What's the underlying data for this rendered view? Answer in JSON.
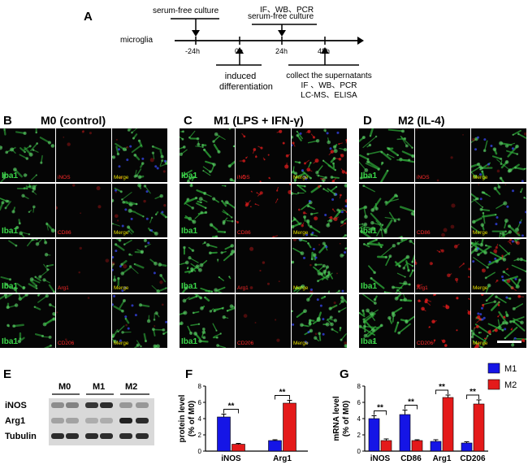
{
  "panel_a": {
    "label": "A",
    "axis_label": "microglia",
    "ticks": [
      "-24h",
      "0h",
      "24h",
      "48h"
    ],
    "top_left": "serum-free culture",
    "top_right_1": "IF、WB、PCR",
    "top_right_2": "serum-free culture",
    "bottom_left_1": "induced",
    "bottom_left_2": "differentiation",
    "bottom_right_1": "collect the supernatants",
    "bottom_right_2": "IF 、WB、PCR",
    "bottom_right_3": "LC-MS、ELISA"
  },
  "panel_b": {
    "label": "B",
    "title": "M0 (control)"
  },
  "panel_c": {
    "label": "C",
    "title": "M1 (LPS + IFN-γ)"
  },
  "panel_d": {
    "label": "D",
    "title": "M2 (IL-4)"
  },
  "micro_rows": [
    {
      "green": "Iba1",
      "red": "iNOS",
      "merge": "Merge"
    },
    {
      "green": "Iba1",
      "red": "CD86",
      "merge": "Merge"
    },
    {
      "green": "Iba1",
      "red": "Arg1",
      "merge": "Merge"
    },
    {
      "green": "Iba1",
      "red": "CD206",
      "merge": "Merge"
    }
  ],
  "panel_e": {
    "label": "E",
    "groups": [
      "M0",
      "M1",
      "M2"
    ],
    "rows": [
      "iNOS",
      "Arg1",
      "Tubulin"
    ]
  },
  "panel_f": {
    "label": "F"
  },
  "panel_g": {
    "label": "G"
  },
  "colors": {
    "m1": "#1515e6",
    "m2": "#e41a1a",
    "green": "#2fae3a",
    "red": "#e01c1c",
    "label_red": "#ff2a2a",
    "label_green": "#3bd84a",
    "label_yellow": "#e8e000"
  },
  "chart_data": [
    {
      "type": "bar",
      "panel": "F",
      "categories": [
        "iNOS",
        "Arg1"
      ],
      "ylabel": "protein level\n(% of M0)",
      "ylim": [
        0,
        8
      ],
      "yticks": [
        0,
        2,
        4,
        6,
        8
      ],
      "series": [
        {
          "name": "M1",
          "values": [
            4.2,
            1.3
          ],
          "errors": [
            0.35,
            0.1
          ]
        },
        {
          "name": "M2",
          "values": [
            0.85,
            5.9
          ],
          "errors": [
            0.1,
            0.35
          ]
        }
      ],
      "annotations": [
        "**",
        "**"
      ]
    },
    {
      "type": "bar",
      "panel": "G",
      "categories": [
        "iNOS",
        "CD86",
        "Arg1",
        "CD206"
      ],
      "ylabel": "mRNA level\n(% of M0)",
      "ylim": [
        0,
        8
      ],
      "yticks": [
        0,
        2,
        4,
        6,
        8
      ],
      "series": [
        {
          "name": "M1",
          "values": [
            4.0,
            4.5,
            1.2,
            1.0
          ],
          "errors": [
            0.35,
            0.55,
            0.2,
            0.15
          ]
        },
        {
          "name": "M2",
          "values": [
            1.3,
            1.3,
            6.6,
            5.8
          ],
          "errors": [
            0.2,
            0.1,
            0.3,
            0.5
          ]
        }
      ],
      "annotations": [
        "**",
        "**",
        "**",
        "**"
      ],
      "legend": "top-right"
    }
  ]
}
